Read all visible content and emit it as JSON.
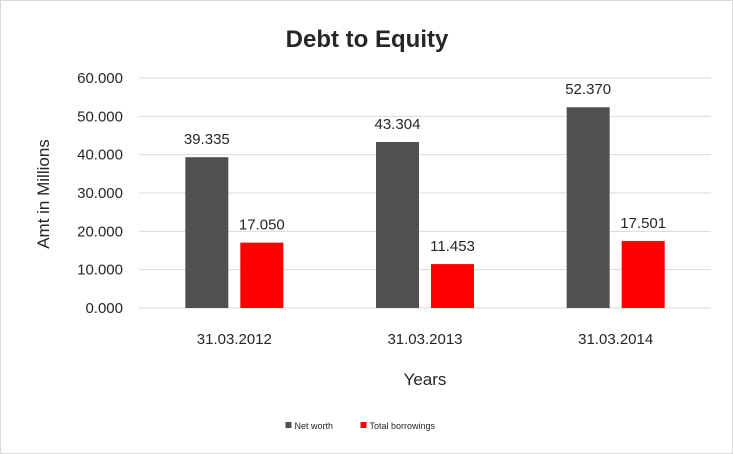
{
  "chart_data": {
    "type": "bar",
    "title": "Debt to Equity",
    "xlabel": "Years",
    "ylabel": "Amt in Millions",
    "categories": [
      "31.03.2012",
      "31.03.2013",
      "31.03.2014"
    ],
    "series": [
      {
        "name": "Net worth",
        "color": "#505050",
        "values": [
          39.335,
          43.304,
          52.37
        ],
        "labels": [
          "39.335",
          "43.304",
          "52.370"
        ]
      },
      {
        "name": "Total borrowings",
        "color": "#ff0000",
        "values": [
          17.05,
          11.453,
          17.501
        ],
        "labels": [
          "17.050",
          "11.453",
          "17.501"
        ]
      }
    ],
    "ylim": [
      0,
      60
    ],
    "yticks": [
      "0.000",
      "10.000",
      "20.000",
      "30.000",
      "40.000",
      "50.000",
      "60.000"
    ],
    "grid": true,
    "legend_position": "bottom",
    "gridline_color": "#d9d9d9"
  }
}
